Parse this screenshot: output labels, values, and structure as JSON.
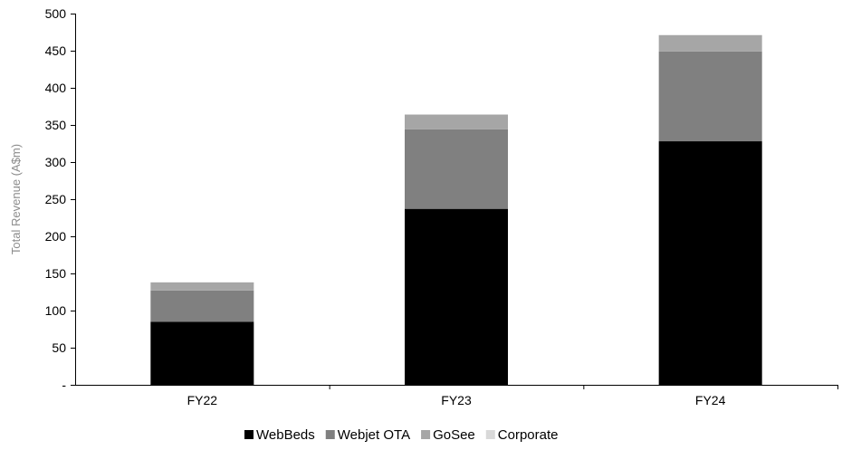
{
  "chart_data": {
    "type": "bar",
    "stacked": true,
    "categories": [
      "FY22",
      "FY23",
      "FY24"
    ],
    "series": [
      {
        "name": "WebBeds",
        "values": [
          85,
          237,
          328
        ],
        "color": "#000000"
      },
      {
        "name": "Webjet OTA",
        "values": [
          42,
          107,
          121
        ],
        "color": "#808080"
      },
      {
        "name": "GoSee",
        "values": [
          11,
          20,
          22
        ],
        "color": "#a6a6a6"
      },
      {
        "name": "Corporate",
        "values": [
          0,
          0,
          0
        ],
        "color": "#d9d9d9"
      }
    ],
    "ylabel": "Total Revenue (A$m)",
    "ylim": [
      0,
      500
    ],
    "yticks": [
      0,
      50,
      100,
      150,
      200,
      250,
      300,
      350,
      400,
      450,
      500
    ],
    "ytick_labels": [
      "-",
      "50",
      "100",
      "150",
      "200",
      "250",
      "300",
      "350",
      "400",
      "450",
      "500"
    ],
    "grid": false,
    "legend_position": "bottom"
  }
}
